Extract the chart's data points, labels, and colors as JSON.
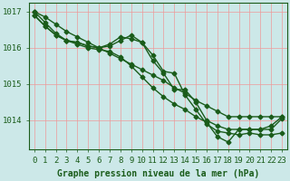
{
  "xlabel": "Graphe pression niveau de la mer (hPa)",
  "bg_color": "#cce8e8",
  "line_color": "#1a5c1a",
  "hours": [
    0,
    1,
    2,
    3,
    4,
    5,
    6,
    7,
    8,
    9,
    10,
    11,
    12,
    13,
    14,
    15,
    16,
    17,
    18,
    19,
    20,
    21,
    22,
    23
  ],
  "series": [
    [
      1017.0,
      1016.85,
      1016.65,
      1016.45,
      1016.3,
      1016.15,
      1016.0,
      1015.85,
      1015.7,
      1015.55,
      1015.4,
      1015.25,
      1015.1,
      1014.9,
      1014.75,
      1014.55,
      1014.4,
      1014.25,
      1014.1,
      1014.1,
      1014.1,
      1014.1,
      1014.1,
      1014.1
    ],
    [
      1016.9,
      1016.6,
      1016.35,
      1016.2,
      1016.15,
      1016.05,
      1016.0,
      1016.1,
      1016.3,
      1016.25,
      1016.15,
      1015.65,
      1015.3,
      1014.85,
      1014.85,
      1014.5,
      1014.0,
      1013.85,
      1013.75,
      1013.75,
      1013.75,
      1013.75,
      1013.85,
      1014.1
    ],
    [
      1016.9,
      1016.6,
      1016.35,
      1016.2,
      1016.15,
      1016.05,
      1016.0,
      1016.05,
      1016.2,
      1016.35,
      1016.15,
      1015.8,
      1015.35,
      1015.3,
      1014.7,
      1014.3,
      1013.9,
      1013.7,
      1013.65,
      1013.6,
      1013.65,
      1013.6,
      1013.6,
      1013.65
    ],
    [
      1017.0,
      1016.7,
      1016.4,
      1016.2,
      1016.1,
      1016.0,
      1015.95,
      1015.9,
      1015.75,
      1015.5,
      1015.2,
      1014.9,
      1014.65,
      1014.45,
      1014.3,
      1014.1,
      1013.95,
      1013.55,
      1013.4,
      1013.75,
      1013.75,
      1013.75,
      1013.75,
      1014.05
    ]
  ],
  "ylim": [
    1013.2,
    1017.25
  ],
  "yticks": [
    1014,
    1015,
    1016,
    1017
  ],
  "marker": "D",
  "markersize": 2.5,
  "linewidth": 1.0,
  "xlabel_fontsize": 7,
  "tick_fontsize": 6.5,
  "xlabel_color": "#1a5c1a",
  "tick_color": "#1a5c1a",
  "grid_color": "#ee9999"
}
